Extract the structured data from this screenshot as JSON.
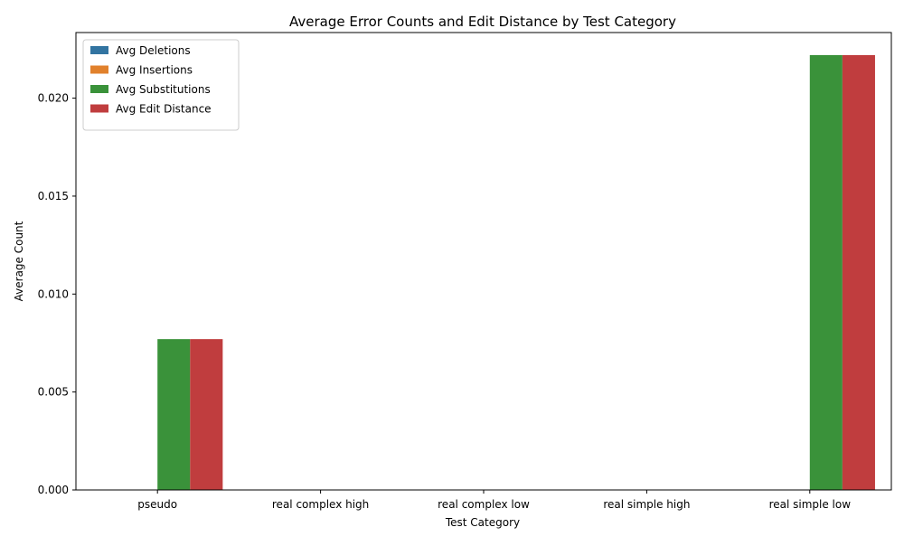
{
  "chart_data": {
    "type": "bar",
    "title": "Average Error Counts and Edit Distance by Test Category",
    "xlabel": "Test Category",
    "ylabel": "Average Count",
    "categories": [
      "pseudo",
      "real complex high",
      "real complex low",
      "real simple high",
      "real simple low"
    ],
    "series": [
      {
        "name": "Avg Deletions",
        "color": "#3274a1",
        "values": [
          0,
          0,
          0,
          0,
          0
        ]
      },
      {
        "name": "Avg Insertions",
        "color": "#e1812c",
        "values": [
          0,
          0,
          0,
          0,
          0
        ]
      },
      {
        "name": "Avg Substitutions",
        "color": "#3a923a",
        "values": [
          0.0077,
          0,
          0,
          0,
          0.0222
        ]
      },
      {
        "name": "Avg Edit Distance",
        "color": "#c03d3e",
        "values": [
          0.0077,
          0,
          0,
          0,
          0.0222
        ]
      }
    ],
    "ylim": [
      0,
      0.02335
    ],
    "yticks": [
      "0.000",
      "0.005",
      "0.010",
      "0.015",
      "0.020"
    ],
    "legend_position": "top-left",
    "grid": false
  }
}
